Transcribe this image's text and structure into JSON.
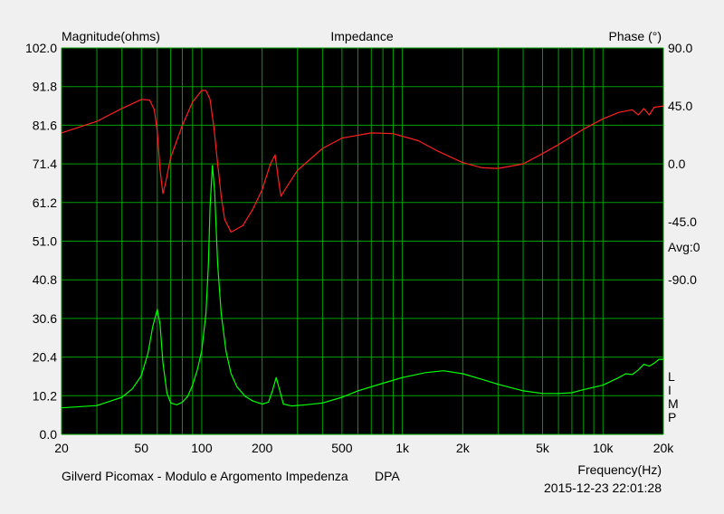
{
  "chart_data": {
    "type": "line",
    "title": "Impedance",
    "left_axis_title": "Magnitude(ohms)",
    "right_axis_title": "Phase (°)",
    "x_axis_title": "Frequency(Hz)",
    "x_scale": "log",
    "xlim": [
      20,
      20000
    ],
    "ylim_left": [
      0.0,
      102.0
    ],
    "ylim_right": [
      -210.0,
      90.0
    ],
    "x_tick_values": [
      20,
      50,
      100,
      200,
      500,
      1000,
      2000,
      5000,
      10000,
      20000
    ],
    "x_tick_labels": [
      "20",
      "50",
      "100",
      "200",
      "500",
      "1k",
      "2k",
      "5k",
      "10k",
      "20k"
    ],
    "y_left_tick_values": [
      0.0,
      10.2,
      20.4,
      30.6,
      40.8,
      51.0,
      61.2,
      71.4,
      81.6,
      91.8,
      102.0
    ],
    "y_left_tick_labels": [
      "0.0",
      "10.2",
      "20.4",
      "30.6",
      "40.8",
      "51.0",
      "61.2",
      "71.4",
      "81.6",
      "91.8",
      "102.0"
    ],
    "y_right_tick_values": [
      90.0,
      45.0,
      0.0,
      -45.0,
      -90.0
    ],
    "y_right_tick_labels": [
      "90.0",
      "45.0",
      "0.0",
      "-45.0",
      "-90.0"
    ],
    "avg_label": "Avg:0",
    "side_letters": [
      "L",
      "I",
      "M",
      "P"
    ],
    "grid": true,
    "background_color": "#000000",
    "grid_color": "#00a000",
    "series": [
      {
        "name": "Magnitude",
        "color": "#00ff00",
        "axis": "left",
        "points": [
          [
            20,
            7.0
          ],
          [
            30,
            7.6
          ],
          [
            40,
            9.8
          ],
          [
            45,
            12.0
          ],
          [
            50,
            15.5
          ],
          [
            54,
            21.5
          ],
          [
            57,
            28.5
          ],
          [
            60,
            33.0
          ],
          [
            62,
            29.0
          ],
          [
            64,
            19.0
          ],
          [
            67,
            11.0
          ],
          [
            70,
            8.3
          ],
          [
            75,
            7.8
          ],
          [
            80,
            8.5
          ],
          [
            85,
            10.0
          ],
          [
            90,
            13.0
          ],
          [
            95,
            17.0
          ],
          [
            100,
            22.0
          ],
          [
            105,
            32.0
          ],
          [
            108,
            45.0
          ],
          [
            110,
            60.0
          ],
          [
            113,
            71.0
          ],
          [
            116,
            64.0
          ],
          [
            120,
            45.0
          ],
          [
            125,
            32.0
          ],
          [
            132,
            22.0
          ],
          [
            140,
            16.0
          ],
          [
            150,
            12.5
          ],
          [
            165,
            10.0
          ],
          [
            180,
            8.8
          ],
          [
            200,
            8.0
          ],
          [
            215,
            8.5
          ],
          [
            225,
            11.5
          ],
          [
            235,
            15.0
          ],
          [
            245,
            11.5
          ],
          [
            255,
            8.0
          ],
          [
            280,
            7.5
          ],
          [
            330,
            7.8
          ],
          [
            400,
            8.3
          ],
          [
            500,
            9.8
          ],
          [
            600,
            11.5
          ],
          [
            800,
            13.5
          ],
          [
            1000,
            15.0
          ],
          [
            1300,
            16.3
          ],
          [
            1600,
            16.8
          ],
          [
            2000,
            16.0
          ],
          [
            2500,
            14.5
          ],
          [
            3000,
            13.2
          ],
          [
            4000,
            11.5
          ],
          [
            5000,
            10.8
          ],
          [
            6000,
            10.8
          ],
          [
            7000,
            11.0
          ],
          [
            8000,
            11.8
          ],
          [
            10000,
            13.0
          ],
          [
            12000,
            15.0
          ],
          [
            13000,
            16.0
          ],
          [
            14000,
            15.8
          ],
          [
            15000,
            17.0
          ],
          [
            16000,
            18.5
          ],
          [
            17000,
            18.0
          ],
          [
            18000,
            18.8
          ],
          [
            19000,
            19.8
          ],
          [
            20000,
            19.8
          ]
        ]
      },
      {
        "name": "Phase",
        "color": "#ff2020",
        "axis": "right",
        "points": [
          [
            20,
            24.0
          ],
          [
            30,
            33.0
          ],
          [
            40,
            43.0
          ],
          [
            50,
            50.0
          ],
          [
            55,
            49.5
          ],
          [
            58,
            42.0
          ],
          [
            60,
            25.0
          ],
          [
            62,
            -5.0
          ],
          [
            64,
            -23.0
          ],
          [
            66,
            -15.0
          ],
          [
            70,
            5.0
          ],
          [
            80,
            30.0
          ],
          [
            90,
            48.0
          ],
          [
            100,
            57.0
          ],
          [
            105,
            57.0
          ],
          [
            110,
            50.0
          ],
          [
            115,
            28.0
          ],
          [
            120,
            0.0
          ],
          [
            125,
            -25.0
          ],
          [
            130,
            -43.0
          ],
          [
            140,
            -53.0
          ],
          [
            160,
            -48.0
          ],
          [
            180,
            -35.0
          ],
          [
            200,
            -20.0
          ],
          [
            220,
            0.0
          ],
          [
            232,
            7.0
          ],
          [
            240,
            -10.0
          ],
          [
            248,
            -25.0
          ],
          [
            260,
            -20.0
          ],
          [
            300,
            -5.0
          ],
          [
            400,
            12.0
          ],
          [
            500,
            20.0
          ],
          [
            700,
            24.0
          ],
          [
            900,
            23.5
          ],
          [
            1200,
            18.0
          ],
          [
            1500,
            10.0
          ],
          [
            2000,
            1.0
          ],
          [
            2500,
            -3.0
          ],
          [
            3000,
            -3.5
          ],
          [
            4000,
            0.0
          ],
          [
            5000,
            8.0
          ],
          [
            6000,
            15.0
          ],
          [
            8000,
            27.0
          ],
          [
            10000,
            35.0
          ],
          [
            12000,
            40.0
          ],
          [
            14000,
            42.0
          ],
          [
            15000,
            38.0
          ],
          [
            16000,
            43.0
          ],
          [
            17000,
            38.0
          ],
          [
            18000,
            44.0
          ],
          [
            20000,
            45.0
          ]
        ]
      }
    ]
  },
  "footer": {
    "caption": "Gilverd Picomax - Modulo e Argomento Impedenza",
    "method": "DPA",
    "timestamp": "2015-12-23 22:01:28"
  }
}
